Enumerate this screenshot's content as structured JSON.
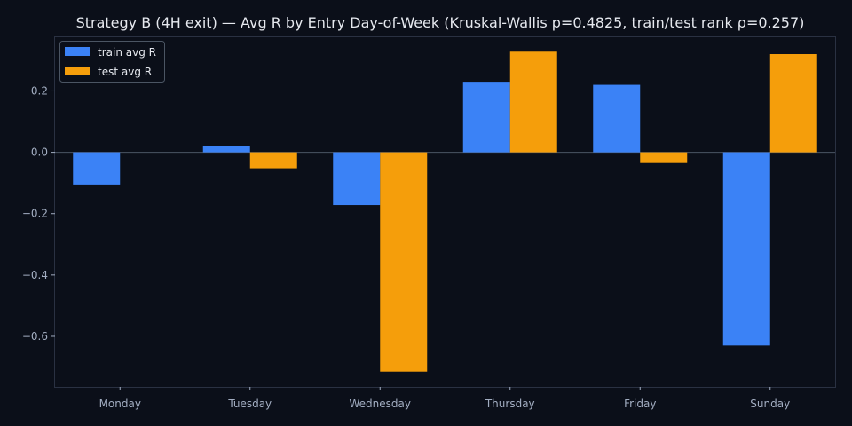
{
  "chart_data": {
    "type": "bar",
    "title": "Strategy B (4H exit) — Avg R by Entry Day-of-Week (Kruskal-Wallis p=0.4825, train/test rank ρ=0.257)",
    "xlabel": "",
    "ylabel": "",
    "categories": [
      "Monday",
      "Tuesday",
      "Wednesday",
      "Thursday",
      "Friday",
      "Sunday"
    ],
    "series": [
      {
        "name": "train avg R",
        "color": "#3b82f6",
        "values": [
          -0.105,
          0.02,
          -0.172,
          0.23,
          0.22,
          -0.63
        ]
      },
      {
        "name": "test avg R",
        "color": "#f59e0b",
        "values": [
          0.0,
          -0.052,
          -0.715,
          0.328,
          -0.035,
          0.32
        ]
      }
    ],
    "ylim": [
      -0.765,
      0.375
    ],
    "yticks": [
      0.2,
      0.0,
      -0.2,
      -0.4,
      -0.6
    ],
    "ytick_labels": [
      "0.2",
      "0.0",
      "−0.2",
      "−0.4",
      "−0.6"
    ],
    "grid": false,
    "legend_position": "top-left",
    "colors": {
      "background": "#0b0f19",
      "axes": "#2a3142",
      "zero_line": "#4b5563",
      "text": "#e6e9ef",
      "tick_text": "#a3aec2"
    }
  }
}
